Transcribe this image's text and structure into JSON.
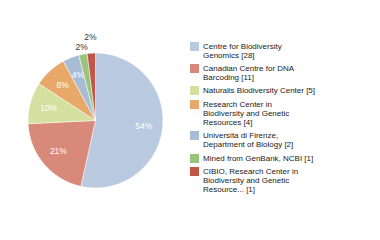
{
  "chart_data": {
    "type": "pie",
    "categories": [
      "Centre for Biodiversity\nGenomics [28]",
      "Canadian Centre for DNA\nBarcoding [11]",
      "Naturalis Biodiversity Center [5]",
      "Research Center in\nBiodiversity and Genetic\nResources [4]",
      "Universita di Firenze,\nDepartment of Biology [2]",
      "Mined from GenBank, NCBI [1]",
      "CIBIO, Research Center in\nBiodiversity and Genetic\nResource... [1]"
    ],
    "values": [
      54,
      21,
      10,
      8,
      4,
      2,
      2
    ],
    "value_labels": [
      "54%",
      "21%",
      "10%",
      "8%",
      "4%",
      "2%",
      "2%"
    ],
    "data_labels": true,
    "colors": [
      "#b8c9e0",
      "#d9897a",
      "#d4dfa0",
      "#e8a86a",
      "#a8bcd4",
      "#99c47a",
      "#c0584a"
    ],
    "legend": "right"
  }
}
